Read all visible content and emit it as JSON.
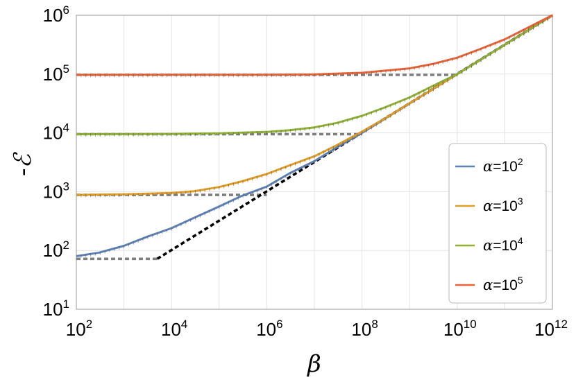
{
  "chart_data": {
    "type": "line",
    "x_scale": "log",
    "y_scale": "log",
    "xlim": [
      100,
      1000000000000
    ],
    "ylim": [
      10,
      1000000
    ],
    "xlabel": "β",
    "ylabel": "-ℰ",
    "grid": true,
    "legend_position": "right",
    "x_ticks": [
      {
        "base": "10",
        "exp": "2",
        "value": 100
      },
      {
        "base": "10",
        "exp": "4",
        "value": 10000
      },
      {
        "base": "10",
        "exp": "6",
        "value": 1000000
      },
      {
        "base": "10",
        "exp": "8",
        "value": 100000000
      },
      {
        "base": "10",
        "exp": "10",
        "value": 10000000000
      },
      {
        "base": "10",
        "exp": "12",
        "value": 1000000000000
      }
    ],
    "y_ticks": [
      {
        "base": "10",
        "exp": "1",
        "value": 10
      },
      {
        "base": "10",
        "exp": "2",
        "value": 100
      },
      {
        "base": "10",
        "exp": "3",
        "value": 1000
      },
      {
        "base": "10",
        "exp": "4",
        "value": 10000
      },
      {
        "base": "10",
        "exp": "5",
        "value": 100000
      },
      {
        "base": "10",
        "exp": "6",
        "value": 1000000
      }
    ],
    "series": [
      {
        "name": "α=10",
        "name_exp": "2",
        "color": "#5e81b5",
        "x": [
          100,
          300,
          1000,
          3000,
          10000,
          30000,
          100000,
          300000,
          1000000,
          3000000,
          10000000,
          30000000,
          100000000,
          1000000000,
          10000000000,
          100000000000,
          1000000000000
        ],
        "y": [
          80,
          92,
          120,
          170,
          240,
          360,
          560,
          850,
          1220,
          2050,
          3300,
          5700,
          10000,
          31600,
          100000,
          316000,
          1000000
        ]
      },
      {
        "name": "α=10",
        "name_exp": "3",
        "color": "#e19c24",
        "x": [
          100,
          1000,
          10000,
          30000,
          100000,
          300000,
          1000000,
          3000000,
          10000000,
          30000000,
          100000000,
          300000000,
          1000000000,
          10000000000,
          100000000000,
          1000000000000
        ],
        "y": [
          880,
          900,
          950,
          1020,
          1200,
          1500,
          2000,
          2800,
          4000,
          6200,
          10500,
          17500,
          32000,
          100000,
          316000,
          1000000
        ]
      },
      {
        "name": "α=10",
        "name_exp": "4",
        "color": "#8fb032",
        "x": [
          100,
          10000,
          100000,
          1000000,
          3000000,
          10000000,
          30000000,
          100000000,
          300000000,
          1000000000,
          3000000000,
          10000000000,
          100000000000,
          1000000000000
        ],
        "y": [
          9500,
          9600,
          9800,
          10400,
          11100,
          12400,
          14800,
          19500,
          27000,
          40000,
          62000,
          100000,
          316000,
          1000000
        ]
      },
      {
        "name": "α=10",
        "name_exp": "5",
        "color": "#eb6235",
        "x": [
          100,
          1000000,
          10000000,
          100000000,
          1000000000,
          3000000000,
          10000000000,
          30000000000,
          100000000000,
          300000000000,
          1000000000000
        ],
        "y": [
          97000,
          97500,
          99000,
          105000,
          125000,
          148000,
          190000,
          265000,
          390000,
          610000,
          1000000
        ]
      }
    ],
    "reference_lines": [
      {
        "style": "dashed",
        "color": "#7f7f7f",
        "x": [
          100,
          5000
        ],
        "y": [
          72,
          72
        ]
      },
      {
        "style": "dashed",
        "color": "#7f7f7f",
        "x": [
          100,
          1000000
        ],
        "y": [
          880,
          880
        ]
      },
      {
        "style": "dashed",
        "color": "#7f7f7f",
        "x": [
          100,
          100000000
        ],
        "y": [
          9500,
          9500
        ]
      },
      {
        "style": "dashed",
        "color": "#7f7f7f",
        "x": [
          100,
          10000000000
        ],
        "y": [
          97000,
          97000
        ]
      },
      {
        "style": "dashed",
        "color": "#000000",
        "x": [
          5000,
          1000000000000
        ],
        "y": [
          72,
          1000000
        ]
      }
    ]
  }
}
